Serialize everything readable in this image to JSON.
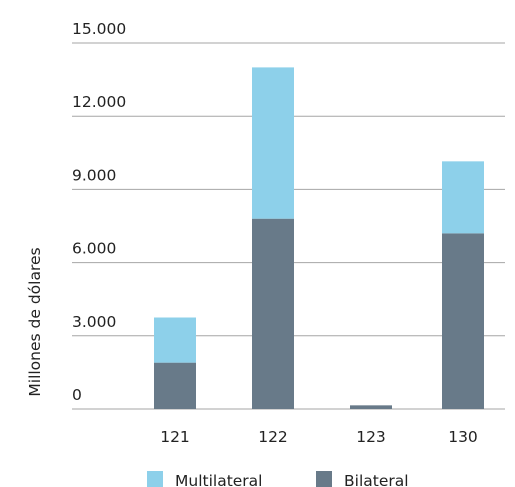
{
  "chart_data": {
    "type": "bar",
    "stacked": true,
    "categories": [
      "121",
      "122",
      "123",
      "130"
    ],
    "series": [
      {
        "name": "Bilateral",
        "color": "#687a89",
        "values": [
          1900,
          7800,
          150,
          7200
        ]
      },
      {
        "name": "Multilateral",
        "color": "#8dd0ea",
        "values": [
          1850,
          6200,
          0,
          2950
        ]
      }
    ],
    "ylabel": "Millones de dólares",
    "xlabel": "",
    "ylim": [
      0,
      15000
    ],
    "yticks": [
      0,
      3000,
      6000,
      9000,
      12000,
      15000
    ],
    "ytick_labels": [
      "0",
      "3.000",
      "6.000",
      "9.000",
      "12.000",
      "15.000"
    ],
    "grid": true,
    "legend_position": "bottom",
    "legend_order": [
      "Multilateral",
      "Bilateral"
    ]
  }
}
